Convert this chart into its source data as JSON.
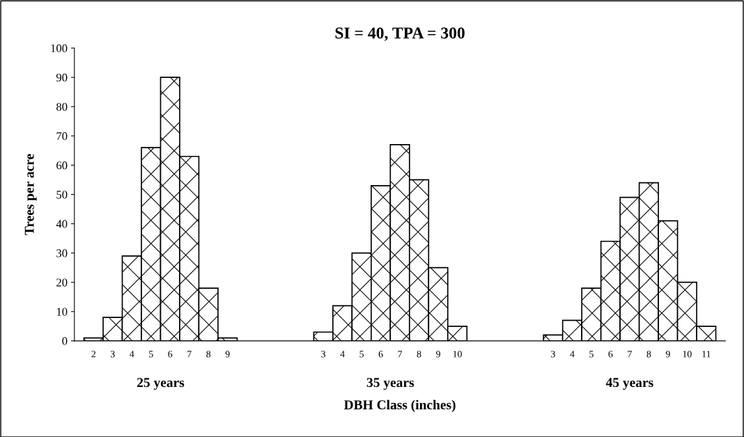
{
  "chart_data": {
    "type": "bar",
    "title": "SI = 40, TPA = 300",
    "xlabel": "DBH Class (inches)",
    "ylabel": "Trees per acre",
    "categories": [
      "2",
      "3",
      "4",
      "5",
      "6",
      "7",
      "8",
      "9",
      null,
      null,
      null,
      null,
      "3",
      "4",
      "5",
      "6",
      "7",
      "8",
      "9",
      "10",
      null,
      null,
      null,
      null,
      "3",
      "4",
      "5",
      "6",
      "7",
      "8",
      "9",
      "10",
      "11"
    ],
    "values": [
      1,
      8,
      29,
      66,
      90,
      63,
      18,
      1,
      null,
      null,
      null,
      null,
      3,
      12,
      30,
      53,
      67,
      55,
      25,
      5,
      null,
      null,
      null,
      null,
      2,
      7,
      18,
      34,
      49,
      54,
      41,
      20,
      5
    ],
    "annotations": [
      "25 years",
      "35 years",
      "45 years"
    ],
    "ylim": [
      0,
      100
    ],
    "yticks": [
      0,
      10,
      20,
      30,
      40,
      50,
      60,
      70,
      80,
      90,
      100
    ],
    "grid": false
  }
}
